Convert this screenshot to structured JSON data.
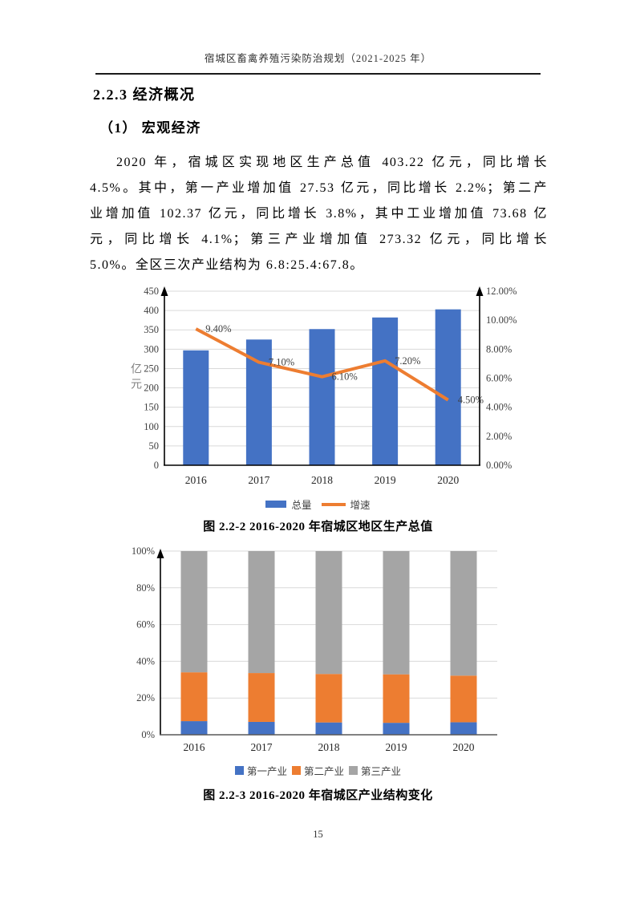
{
  "page": {
    "header": "宿城区畜禽养殖污染防治规划（2021-2025 年）",
    "page_number": "15"
  },
  "section": {
    "heading": "2.2.3 经济概况",
    "subheading": "（1） 宏观经济",
    "paragraph_lines": [
      "2020 年，宿城区实现地区生产总值 403.22 亿元，同比增长",
      "4.5%。其中，第一产业增加值 27.53 亿元，同比增长 2.2%；第二产",
      "业增加值 102.37 亿元，同比增长 3.8%，其中工业增加值 73.68 亿",
      "元，同比增长 4.1%；第三产业增加值 273.32 亿元，同比增长",
      "5.0%。全区三次产业结构为 6.8:25.4:67.8。"
    ]
  },
  "chart_data": [
    {
      "type": "bar",
      "subtype": "combo-bar-line-dual-axis",
      "title": "图 2.2-2 2016-2020 年宿城区地区生产总值",
      "categories": [
        "2016",
        "2017",
        "2018",
        "2019",
        "2020"
      ],
      "series": [
        {
          "name": "总量",
          "chart": "bar",
          "axis": "left",
          "color": "#4472C4",
          "values": [
            297,
            325,
            352,
            382,
            403
          ]
        },
        {
          "name": "增速",
          "chart": "line",
          "axis": "right",
          "color": "#ED7D31",
          "values": [
            9.4,
            7.1,
            6.1,
            7.2,
            4.5
          ],
          "point_labels": [
            "9.40%",
            "7.10%",
            "6.10%",
            "7.20%",
            "4.50%"
          ]
        }
      ],
      "left_axis": {
        "label": "亿元",
        "min": 0,
        "max": 450,
        "step": 50,
        "ticks": [
          "450",
          "400",
          "350",
          "300",
          "250",
          "200",
          "150",
          "100",
          "50",
          "0"
        ]
      },
      "right_axis": {
        "min": 0,
        "max": 12,
        "step": 2,
        "ticks": [
          "12.00%",
          "10.00%",
          "8.00%",
          "6.00%",
          "4.00%",
          "2.00%",
          "0.00%"
        ]
      },
      "grid": true,
      "legend_position": "bottom"
    },
    {
      "type": "bar",
      "subtype": "stacked-100-percent",
      "title": "图 2.2-3 2016-2020 年宿城区产业结构变化",
      "categories": [
        "2016",
        "2017",
        "2018",
        "2019",
        "2020"
      ],
      "series": [
        {
          "name": "第一产业",
          "color": "#4472C4",
          "values": [
            7.4,
            7.0,
            6.7,
            6.5,
            6.8
          ]
        },
        {
          "name": "第二产业",
          "color": "#ED7D31",
          "values": [
            26.6,
            26.6,
            26.4,
            26.4,
            25.4
          ]
        },
        {
          "name": "第三产业",
          "color": "#A5A5A5",
          "values": [
            66.0,
            66.4,
            66.9,
            67.1,
            67.8
          ]
        }
      ],
      "y_axis": {
        "min": 0,
        "max": 100,
        "step": 20,
        "unit": "%",
        "ticks": [
          "100%",
          "80%",
          "60%",
          "40%",
          "20%",
          "0%"
        ]
      },
      "grid": true,
      "legend_position": "bottom"
    }
  ]
}
